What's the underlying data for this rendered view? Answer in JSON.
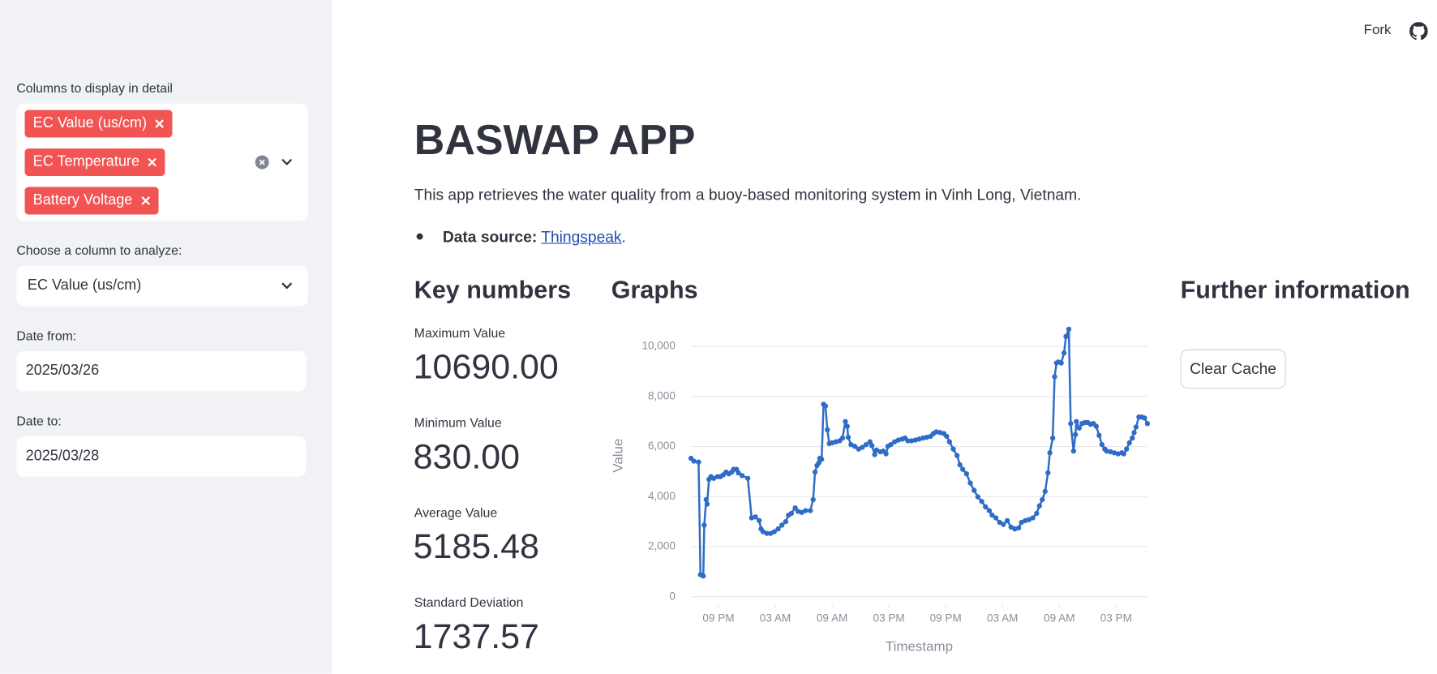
{
  "header": {
    "fork": "Fork"
  },
  "sidebar": {
    "multiselect_label": "Columns to display in detail",
    "selected_columns": [
      "EC Value (us/cm)",
      "EC Temperature",
      "Battery Voltage"
    ],
    "analyze_label": "Choose a column to analyze:",
    "analyze_value": "EC Value (us/cm)",
    "date_from_label": "Date from:",
    "date_from": "2025/03/26",
    "date_to_label": "Date to:",
    "date_to": "2025/03/28"
  },
  "main": {
    "title": "BASWAP APP",
    "description": "This app retrieves the water quality from a buoy-based monitoring system in Vinh Long, Vietnam.",
    "source_label": "Data source:",
    "source_link": "Thingspeak",
    "source_suffix": ".",
    "key_numbers_title": "Key numbers",
    "metrics": [
      {
        "label": "Maximum Value",
        "value": "10690.00"
      },
      {
        "label": "Minimum Value",
        "value": "830.00"
      },
      {
        "label": "Average Value",
        "value": "5185.48"
      },
      {
        "label": "Standard Deviation",
        "value": "1737.57"
      }
    ],
    "graphs_title": "Graphs",
    "further_title": "Further information",
    "clear_cache": "Clear Cache"
  },
  "chart_data": {
    "type": "line",
    "x_label": "Timestamp",
    "y_label": "Value",
    "color": "#2e6cc7",
    "grid": true,
    "xlim": [
      18.1,
      66.3
    ],
    "ylim": [
      -300,
      10800
    ],
    "xticks": [
      {
        "value": 21,
        "label": "09 PM"
      },
      {
        "value": 27,
        "label": "03 AM"
      },
      {
        "value": 33,
        "label": "09 AM"
      },
      {
        "value": 39,
        "label": "03 PM"
      },
      {
        "value": 45,
        "label": "09 PM"
      },
      {
        "value": 51,
        "label": "03 AM"
      },
      {
        "value": 57,
        "label": "09 AM"
      },
      {
        "value": 63,
        "label": "03 PM"
      }
    ],
    "yticks": [
      0,
      {
        "value": 2000,
        "label": "2,000"
      },
      {
        "value": 4000,
        "label": "4,000"
      },
      {
        "value": 6000,
        "label": "6,000"
      },
      {
        "value": 8000,
        "label": "8,000"
      },
      {
        "value": 10000,
        "label": "10,000"
      }
    ],
    "x": [
      18.1,
      18.4,
      18.9,
      19.1,
      19.4,
      19.5,
      19.7,
      19.8,
      20.0,
      20.2,
      20.5,
      20.9,
      21.2,
      21.5,
      21.8,
      22.1,
      22.4,
      22.6,
      22.9,
      23.1,
      23.5,
      24.1,
      24.5,
      24.9,
      25.3,
      25.5,
      25.7,
      26.1,
      26.5,
      26.9,
      27.3,
      27.7,
      28.1,
      28.4,
      28.7,
      29.1,
      29.4,
      29.8,
      30.2,
      30.7,
      31.0,
      31.2,
      31.4,
      31.6,
      31.7,
      31.9,
      32.1,
      32.3,
      32.5,
      32.7,
      33.0,
      33.4,
      33.8,
      34.1,
      34.4,
      34.6,
      34.7,
      35.0,
      35.4,
      35.8,
      36.2,
      36.6,
      37.0,
      37.2,
      37.5,
      37.7,
      38.1,
      38.4,
      38.7,
      38.9,
      39.2,
      39.6,
      40.0,
      40.4,
      40.7,
      41.0,
      41.4,
      41.8,
      42.2,
      42.6,
      43.0,
      43.4,
      43.7,
      44.0,
      44.4,
      44.8,
      45.1,
      45.4,
      45.8,
      46.2,
      46.5,
      46.8,
      47.2,
      47.6,
      48.0,
      48.4,
      48.8,
      49.2,
      49.6,
      49.9,
      50.3,
      50.7,
      51.1,
      51.5,
      51.9,
      52.3,
      52.7,
      53.0,
      53.4,
      53.8,
      54.2,
      54.6,
      54.9,
      55.2,
      55.5,
      55.8,
      56.0,
      56.3,
      56.5,
      56.7,
      56.9,
      57.2,
      57.5,
      57.7,
      58.0,
      58.2,
      58.5,
      58.7,
      58.8,
      59.1,
      59.4,
      59.7,
      60.0,
      60.3,
      60.6,
      60.9,
      61.2,
      61.5,
      61.8,
      62.0,
      62.4,
      62.8,
      63.2,
      63.6,
      63.8,
      64.1,
      64.4,
      64.7,
      64.9,
      65.1,
      65.4,
      65.7,
      66.0,
      66.3
    ],
    "values": [
      5530,
      5420,
      5380,
      880,
      830,
      2860,
      3880,
      3700,
      4690,
      4800,
      4730,
      4800,
      4800,
      4870,
      4980,
      4910,
      4980,
      5090,
      5090,
      4950,
      4840,
      4730,
      3150,
      3190,
      3040,
      2710,
      2600,
      2530,
      2530,
      2600,
      2710,
      2860,
      3000,
      3260,
      3330,
      3550,
      3410,
      3370,
      3440,
      3440,
      3880,
      4980,
      5240,
      5350,
      5530,
      5490,
      7690,
      7620,
      6670,
      6120,
      6150,
      6190,
      6230,
      6340,
      7000,
      6810,
      6370,
      6080,
      6010,
      5900,
      5970,
      6080,
      6190,
      6040,
      5680,
      5860,
      5790,
      5820,
      5710,
      6010,
      6080,
      6190,
      6260,
      6300,
      6340,
      6230,
      6230,
      6260,
      6300,
      6340,
      6370,
      6410,
      6520,
      6590,
      6560,
      6520,
      6410,
      6190,
      5900,
      5640,
      5270,
      5090,
      4910,
      4540,
      4250,
      3990,
      3810,
      3590,
      3440,
      3260,
      3150,
      2970,
      2890,
      3040,
      2780,
      2710,
      2750,
      2970,
      3040,
      3080,
      3150,
      3330,
      3630,
      3880,
      4210,
      4950,
      5750,
      6340,
      8790,
      9340,
      9380,
      9340,
      9740,
      10400,
      10690,
      6920,
      5820,
      6480,
      7000,
      6740,
      6920,
      6960,
      6960,
      6890,
      6920,
      6810,
      6450,
      6080,
      5900,
      5820,
      5790,
      5750,
      5710,
      5750,
      5710,
      5900,
      6150,
      6340,
      6560,
      6780,
      7180,
      7180,
      7140,
      6920
    ]
  }
}
